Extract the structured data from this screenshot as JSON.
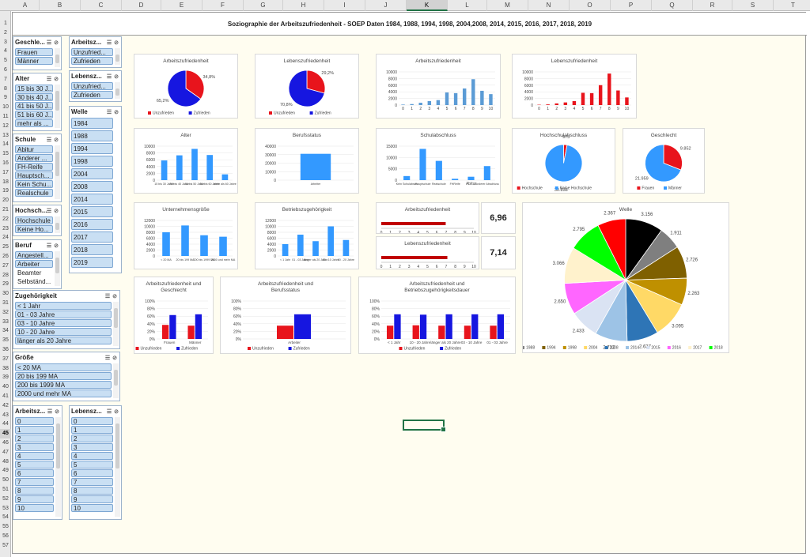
{
  "sheet": {
    "title": "Soziographie der Arbeitszufriedenheit - SOEP Daten 1984, 1988, 1994, 1998, 2004,2008, 2014, 2015, 2016, 2017, 2018, 2019"
  },
  "columns": [
    "A",
    "B",
    "C",
    "D",
    "E",
    "F",
    "G",
    "H",
    "I",
    "J",
    "K",
    "L",
    "M",
    "N",
    "O",
    "P",
    "Q",
    "R",
    "S",
    "T"
  ],
  "selected_column": "K",
  "selected_row": "45",
  "rows": [
    "1",
    "2",
    "3",
    "4",
    "5",
    "6",
    "7",
    "8",
    "9",
    "10",
    "11",
    "12",
    "13",
    "14",
    "15",
    "16",
    "17",
    "18",
    "19",
    "20",
    "21",
    "22",
    "23",
    "24",
    "25",
    "26",
    "27",
    "28",
    "29",
    "30",
    "31",
    "32",
    "33",
    "34",
    "35",
    "36",
    "37",
    "38",
    "39",
    "40",
    "41",
    "42",
    "43",
    "44",
    "45",
    "46",
    "47",
    "48",
    "49",
    "50",
    "51",
    "52",
    "53",
    "54",
    "55",
    "56",
    "57"
  ],
  "colors": {
    "red": "#e8141c",
    "blue": "#1616e0",
    "lightblue": "#5b9bd5",
    "darkred": "#c00000",
    "bar": "#3399ff",
    "accent": "#217346"
  },
  "slicers": {
    "geschlecht": {
      "title": "Geschle...",
      "items": [
        "Frauen",
        "Männer"
      ]
    },
    "arbeitsz": {
      "title": "Arbeitsz...",
      "items": [
        "Unzufried...",
        "Zufrieden"
      ]
    },
    "alter": {
      "title": "Alter",
      "items": [
        "15 bis 30 J...",
        "30 bis 40 J...",
        "41 bis 50 J...",
        "51 bis 60 J...",
        "mehr als ..."
      ]
    },
    "lebensz": {
      "title": "Lebensz...",
      "items": [
        "Unzufried...",
        "Zufrieden"
      ]
    },
    "welle": {
      "title": "Welle",
      "items": [
        "1984",
        "1988",
        "1994",
        "1998",
        "2004",
        "2008",
        "2014",
        "2015",
        "2016",
        "2017",
        "2018",
        "2019"
      ]
    },
    "schule": {
      "title": "Schule",
      "items": [
        "Abitur",
        "Anderer ...",
        "FH-Reife",
        "Hauptsch...",
        "Kein Schu...",
        "Realschule"
      ]
    },
    "hochschule": {
      "title": "Hochsch...",
      "items": [
        "Hochschule",
        "Keine Ho..."
      ]
    },
    "beruf": {
      "title": "Beruf",
      "items": [
        "Angestell...",
        "Arbeiter",
        "Beamter",
        "Selbständ..."
      ]
    },
    "zugehoerigkeit": {
      "title": "Zugehörigkeit",
      "items": [
        "< 1 Jahr",
        "01 - 03 Jahre",
        "03 - 10 Jahre",
        "10 - 20 Jahre",
        "länger als 20 Jahre"
      ]
    },
    "groesse": {
      "title": "Größe",
      "items": [
        "< 20 MA",
        "20 bis 199 MA",
        "200 bis 1999 MA",
        "2000 und mehr MA"
      ]
    },
    "arbeitsz2": {
      "title": "Arbeitsz...",
      "items": [
        "0",
        "1",
        "2",
        "3",
        "4",
        "5",
        "6",
        "7",
        "8",
        "9",
        "10"
      ]
    },
    "lebensz2": {
      "title": "Lebensz...",
      "items": [
        "0",
        "1",
        "2",
        "3",
        "4",
        "5",
        "6",
        "7",
        "8",
        "9",
        "10"
      ]
    }
  },
  "kpi": {
    "arbeitszufriedenheit": "6,96",
    "lebenszufriedenheit": "7,14"
  },
  "chart_data": [
    {
      "id": "c1",
      "type": "pie",
      "title": "Arbeitszufriedenheit",
      "categories": [
        "Unzufrieden",
        "Zufrieden"
      ],
      "values": [
        34.8,
        65.2
      ],
      "labels": [
        "34,8%",
        "65,2%"
      ],
      "colors": [
        "#e8141c",
        "#1616e0"
      ],
      "legend": "bottom"
    },
    {
      "id": "c2",
      "type": "pie",
      "title": "Lebenszufriedenheit",
      "categories": [
        "Unzufrieden",
        "Zufrieden"
      ],
      "values": [
        29.2,
        70.8
      ],
      "labels": [
        "29,2%",
        "70,8%"
      ],
      "colors": [
        "#e8141c",
        "#1616e0"
      ],
      "legend": "bottom"
    },
    {
      "id": "c3",
      "type": "bar",
      "title": "Arbeitszufriedenheit",
      "categories": [
        "0",
        "1",
        "2",
        "3",
        "4",
        "5",
        "6",
        "7",
        "8",
        "9",
        "10"
      ],
      "values": [
        150,
        300,
        700,
        1200,
        1500,
        3800,
        3600,
        5000,
        7800,
        4300,
        3300
      ],
      "ylim": [
        0,
        10000
      ],
      "yticks": [
        "0",
        "2000",
        "4000",
        "6000",
        "8000",
        "10000"
      ],
      "color": "#5b9bd5"
    },
    {
      "id": "c4",
      "type": "bar",
      "title": "Lebenszufriedenheit",
      "categories": [
        "0",
        "1",
        "2",
        "3",
        "4",
        "5",
        "6",
        "7",
        "8",
        "9",
        "10"
      ],
      "values": [
        100,
        200,
        500,
        800,
        1200,
        3700,
        3600,
        6000,
        9500,
        4400,
        2300
      ],
      "ylim": [
        0,
        10000
      ],
      "yticks": [
        "0",
        "2000",
        "4000",
        "6000",
        "8000",
        "10000"
      ],
      "color": "#e8141c"
    },
    {
      "id": "c5",
      "type": "bar",
      "title": "Alter",
      "categories": [
        "15 bis 30 Jahre",
        "30 bis 40 Jahre",
        "41 bis 50 Jahre",
        "51 bis 60 Jahre",
        "mehr als 60 Jahre"
      ],
      "values": [
        5800,
        7300,
        9200,
        7400,
        1700
      ],
      "ylim": [
        0,
        10000
      ],
      "yticks": [
        "0",
        "2000",
        "4000",
        "6000",
        "8000",
        "10000"
      ],
      "color": "#3399ff"
    },
    {
      "id": "c6",
      "type": "bar",
      "title": "Berufsstatus",
      "categories": [
        "Arbeiter"
      ],
      "values": [
        31000
      ],
      "ylim": [
        0,
        40000
      ],
      "yticks": [
        "0",
        "10000",
        "20000",
        "30000",
        "40000"
      ],
      "color": "#3399ff"
    },
    {
      "id": "c7",
      "type": "bar",
      "title": "Schulabschluss",
      "categories": [
        "Kein Schulabsch",
        "Hauptschule",
        "Realschule",
        "FHReife",
        "Abitur",
        "Anderer Abschluss"
      ],
      "values": [
        1800,
        13800,
        8500,
        600,
        1500,
        6200
      ],
      "ylim": [
        0,
        15000
      ],
      "yticks": [
        "0",
        "5000",
        "10000",
        "15000"
      ],
      "color": "#3399ff"
    },
    {
      "id": "c8",
      "type": "pie",
      "title": "Hochschulabschluss",
      "categories": [
        "Hochschule",
        "Keine Hochschule"
      ],
      "values": [
        973,
        30838
      ],
      "labels": [
        "973",
        "30.838"
      ],
      "colors": [
        "#e8141c",
        "#3399ff"
      ],
      "legend": "bottom"
    },
    {
      "id": "c9",
      "type": "pie",
      "title": "Geschlecht",
      "categories": [
        "Frauen",
        "Männer"
      ],
      "values": [
        9852,
        21959
      ],
      "labels": [
        "9.852",
        "21.959"
      ],
      "colors": [
        "#e8141c",
        "#3399ff"
      ],
      "legend": "bottom"
    },
    {
      "id": "c10",
      "type": "bar",
      "title": "Unternehmensgröße",
      "categories": [
        "< 20 MA",
        "20 bis 199 MA",
        "200 bis 1999 MA",
        "2000 und mehr MA"
      ],
      "values": [
        8000,
        10300,
        7000,
        6500
      ],
      "ylim": [
        0,
        12000
      ],
      "yticks": [
        "0",
        "2000",
        "4000",
        "6000",
        "8000",
        "10000",
        "12000"
      ],
      "color": "#3399ff"
    },
    {
      "id": "c11",
      "type": "bar",
      "title": "Betriebszugehörigkeit",
      "categories": [
        "< 1 Jahr",
        "01 - 03 Jahre",
        "länger als 20 Jahre",
        "03 - 10 Jahre",
        "10 - 20 Jahre"
      ],
      "values": [
        4000,
        7200,
        5000,
        10000,
        5400
      ],
      "ylim": [
        0,
        12000
      ],
      "yticks": [
        "0",
        "2000",
        "4000",
        "6000",
        "8000",
        "10000",
        "12000"
      ],
      "color": "#3399ff"
    },
    {
      "id": "c12",
      "type": "bar",
      "orientation": "horizontal",
      "title": "Arbeitszufriedenheit",
      "values": [
        6.96
      ],
      "xlim": [
        0,
        10
      ],
      "xticks": [
        "0",
        "1",
        "2",
        "3",
        "4",
        "5",
        "6",
        "7",
        "8",
        "9",
        "10"
      ],
      "color": "#c00000"
    },
    {
      "id": "c13",
      "type": "bar",
      "orientation": "horizontal",
      "title": "Lebenszufriedenheit",
      "values": [
        7.14
      ],
      "xlim": [
        0,
        10
      ],
      "xticks": [
        "0",
        "1",
        "2",
        "3",
        "4",
        "5",
        "6",
        "7",
        "8",
        "9",
        "10"
      ],
      "color": "#c00000"
    },
    {
      "id": "c14",
      "type": "pie",
      "title": "Welle",
      "categories": [
        "1984",
        "1988",
        "1994",
        "1998",
        "2004",
        "2008",
        "2014",
        "2015",
        "2016",
        "2017",
        "2018",
        "2019"
      ],
      "values": [
        3156,
        1911,
        2726,
        2263,
        3095,
        2637,
        2712,
        2433,
        2650,
        3066,
        2795,
        2367
      ],
      "labels": [
        "3.156",
        "1.911",
        "2.726",
        "2.263",
        "3.095",
        "2.637",
        "2.712",
        "2.433",
        "2.650",
        "3.066",
        "2.795",
        "2.367"
      ],
      "colors": [
        "#000000",
        "#7f7f7f",
        "#7f6000",
        "#bf9000",
        "#ffd966",
        "#2e75b6",
        "#9dc3e6",
        "#dae3f3",
        "#ff66ff",
        "#fff2cc",
        "#00ff00",
        "#ff0000"
      ],
      "legend": "bottom"
    },
    {
      "id": "c15",
      "type": "bar",
      "title": "Arbeitszufriedenheit und Geschlecht",
      "categories": [
        "Frauen",
        "Männer"
      ],
      "series": [
        {
          "name": "Unzufrieden",
          "values": [
            37,
            35
          ],
          "color": "#e8141c"
        },
        {
          "name": "Zufrieden",
          "values": [
            63,
            65
          ],
          "color": "#1616e0"
        }
      ],
      "ylim": [
        0,
        100
      ],
      "yticks": [
        "0%",
        "20%",
        "40%",
        "60%",
        "80%",
        "100%"
      ]
    },
    {
      "id": "c16",
      "type": "bar",
      "title": "Arbeitszufriedenheit und Berufsstatus",
      "categories": [
        "Arbeiter"
      ],
      "series": [
        {
          "name": "Unzufrieden",
          "values": [
            35
          ],
          "color": "#e8141c"
        },
        {
          "name": "Zufrieden",
          "values": [
            65
          ],
          "color": "#1616e0"
        }
      ],
      "ylim": [
        0,
        100
      ],
      "yticks": [
        "0%",
        "20%",
        "40%",
        "60%",
        "80%",
        "100%"
      ]
    },
    {
      "id": "c17",
      "type": "bar",
      "title": "Arbeitszufriedenheit und Betriebszugehörigkeitsdauer",
      "categories": [
        "< 1 Jahr",
        "10 - 20 Jahre",
        "länger als 20 Jahre",
        "03 - 10 Jahre",
        "01 - 03 Jahre"
      ],
      "series": [
        {
          "name": "Unzufrieden",
          "values": [
            35,
            36,
            35,
            35,
            35
          ],
          "color": "#e8141c"
        },
        {
          "name": "Zufrieden",
          "values": [
            65,
            64,
            65,
            65,
            65
          ],
          "color": "#1616e0"
        }
      ],
      "ylim": [
        0,
        100
      ],
      "yticks": [
        "0%",
        "20%",
        "40%",
        "60%",
        "80%",
        "100%"
      ]
    }
  ]
}
